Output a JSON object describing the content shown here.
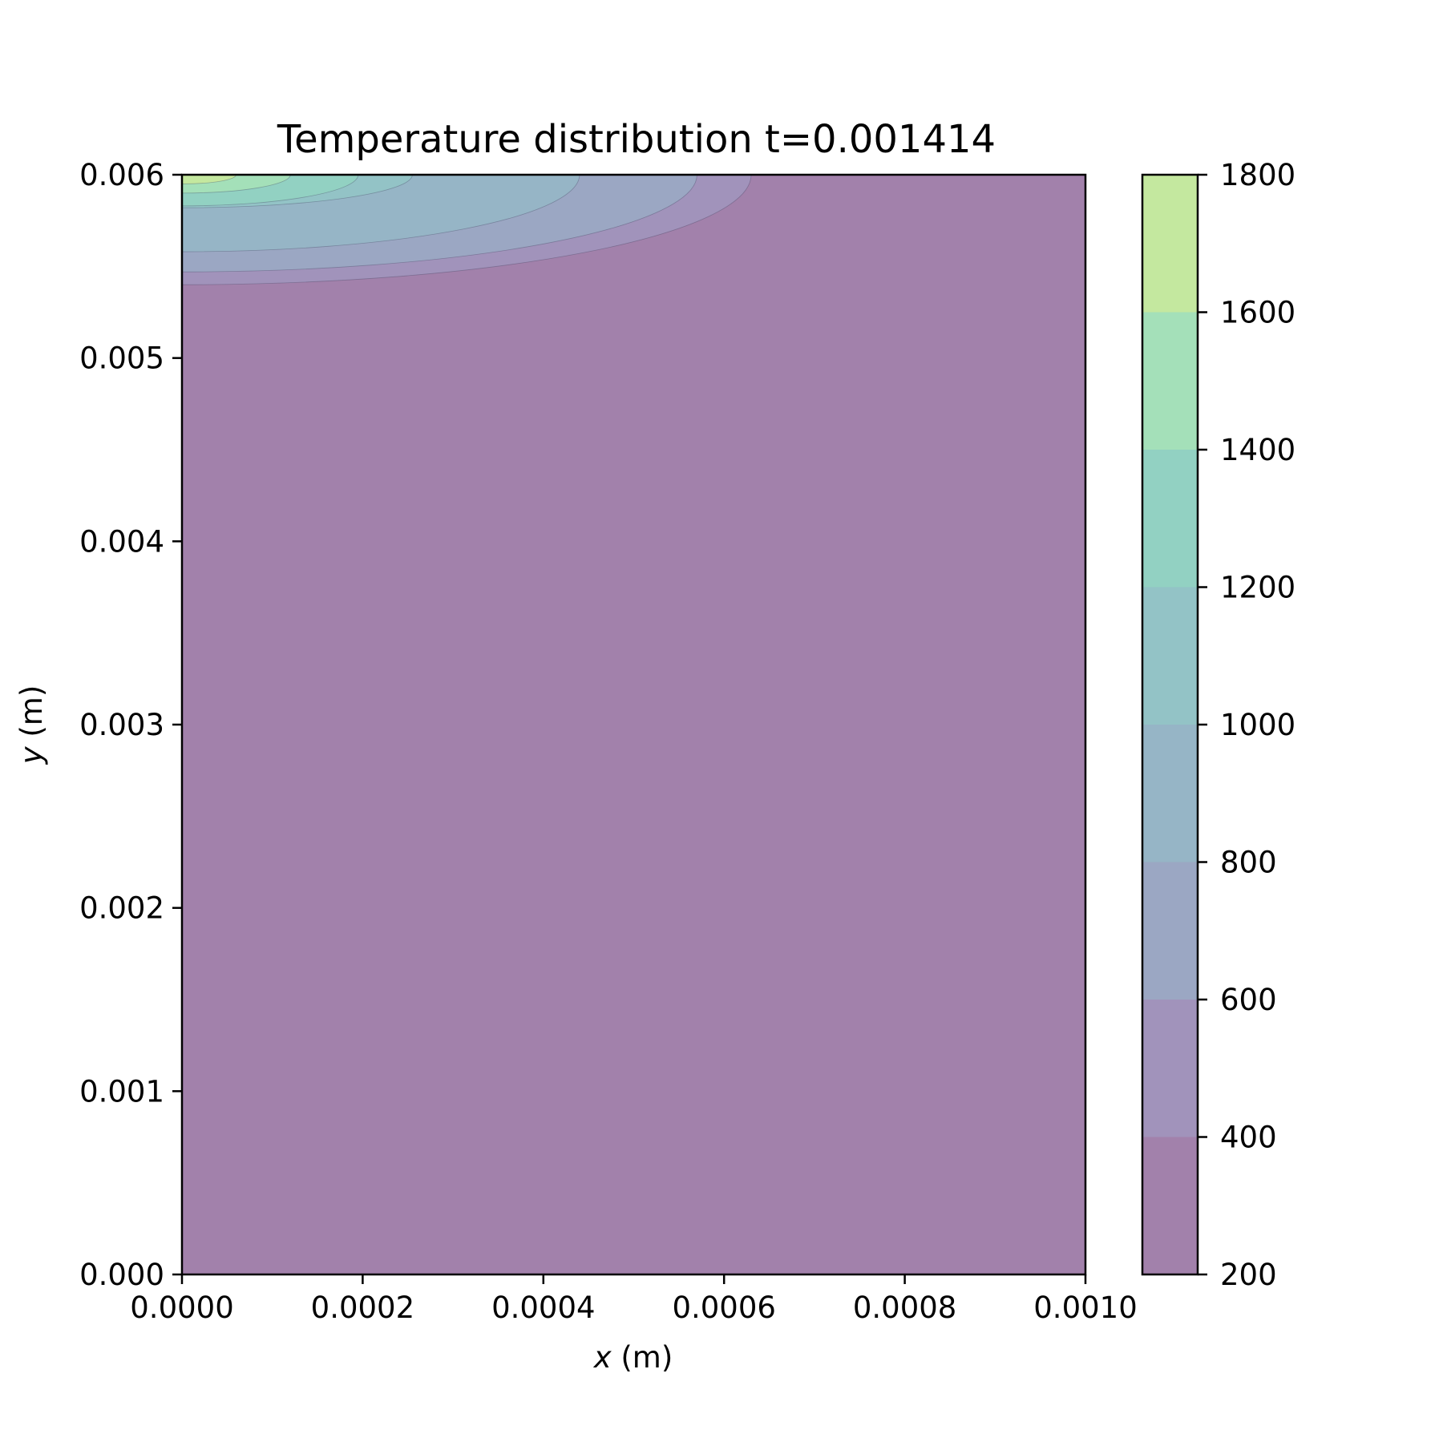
{
  "chart_data": {
    "type": "contour",
    "title": "Temperature distribution t=0.001414",
    "xlabel": {
      "var": "x",
      "unit": " (m)"
    },
    "ylabel": {
      "var": "y",
      "unit": " (m)"
    },
    "xlim": [
      0,
      0.001
    ],
    "ylim": [
      0,
      0.006
    ],
    "x_ticks": [
      0,
      0.0002,
      0.0004,
      0.0006,
      0.0008,
      0.001
    ],
    "x_tick_labels": [
      "0.0000",
      "0.0002",
      "0.0004",
      "0.0006",
      "0.0008",
      "0.0010"
    ],
    "y_ticks": [
      0,
      0.001,
      0.002,
      0.003,
      0.004,
      0.005,
      0.006
    ],
    "y_tick_labels": [
      "0.000",
      "0.001",
      "0.002",
      "0.003",
      "0.004",
      "0.005",
      "0.006"
    ],
    "colorbar": {
      "levels": [
        200,
        400,
        600,
        800,
        1000,
        1200,
        1400,
        1600,
        1800
      ],
      "tick_labels": [
        "200",
        "400",
        "600",
        "800",
        "1000",
        "1200",
        "1400",
        "1600",
        "1800"
      ],
      "colors": [
        "#a281ab",
        "#a193bb",
        "#9ba7c3",
        "#96b5c6",
        "#93c3c6",
        "#92d1c2",
        "#a4e0b9",
        "#c4e89f"
      ]
    },
    "contours": [
      {
        "level": 400,
        "x_extent": 0.00063,
        "y_bottom": 0.0054
      },
      {
        "level": 600,
        "x_extent": 0.00057,
        "y_bottom": 0.00547
      },
      {
        "level": 800,
        "x_extent": 0.00044,
        "y_bottom": 0.00558
      },
      {
        "level": 1000,
        "x_extent": 0.000255,
        "y_bottom": 0.00582
      },
      {
        "level": 1200,
        "x_extent": 0.000195,
        "y_bottom": 0.00583
      },
      {
        "level": 1400,
        "x_extent": 0.00012,
        "y_bottom": 0.0059
      },
      {
        "level": 1600,
        "x_extent": 6e-05,
        "y_bottom": 0.00595
      }
    ]
  }
}
